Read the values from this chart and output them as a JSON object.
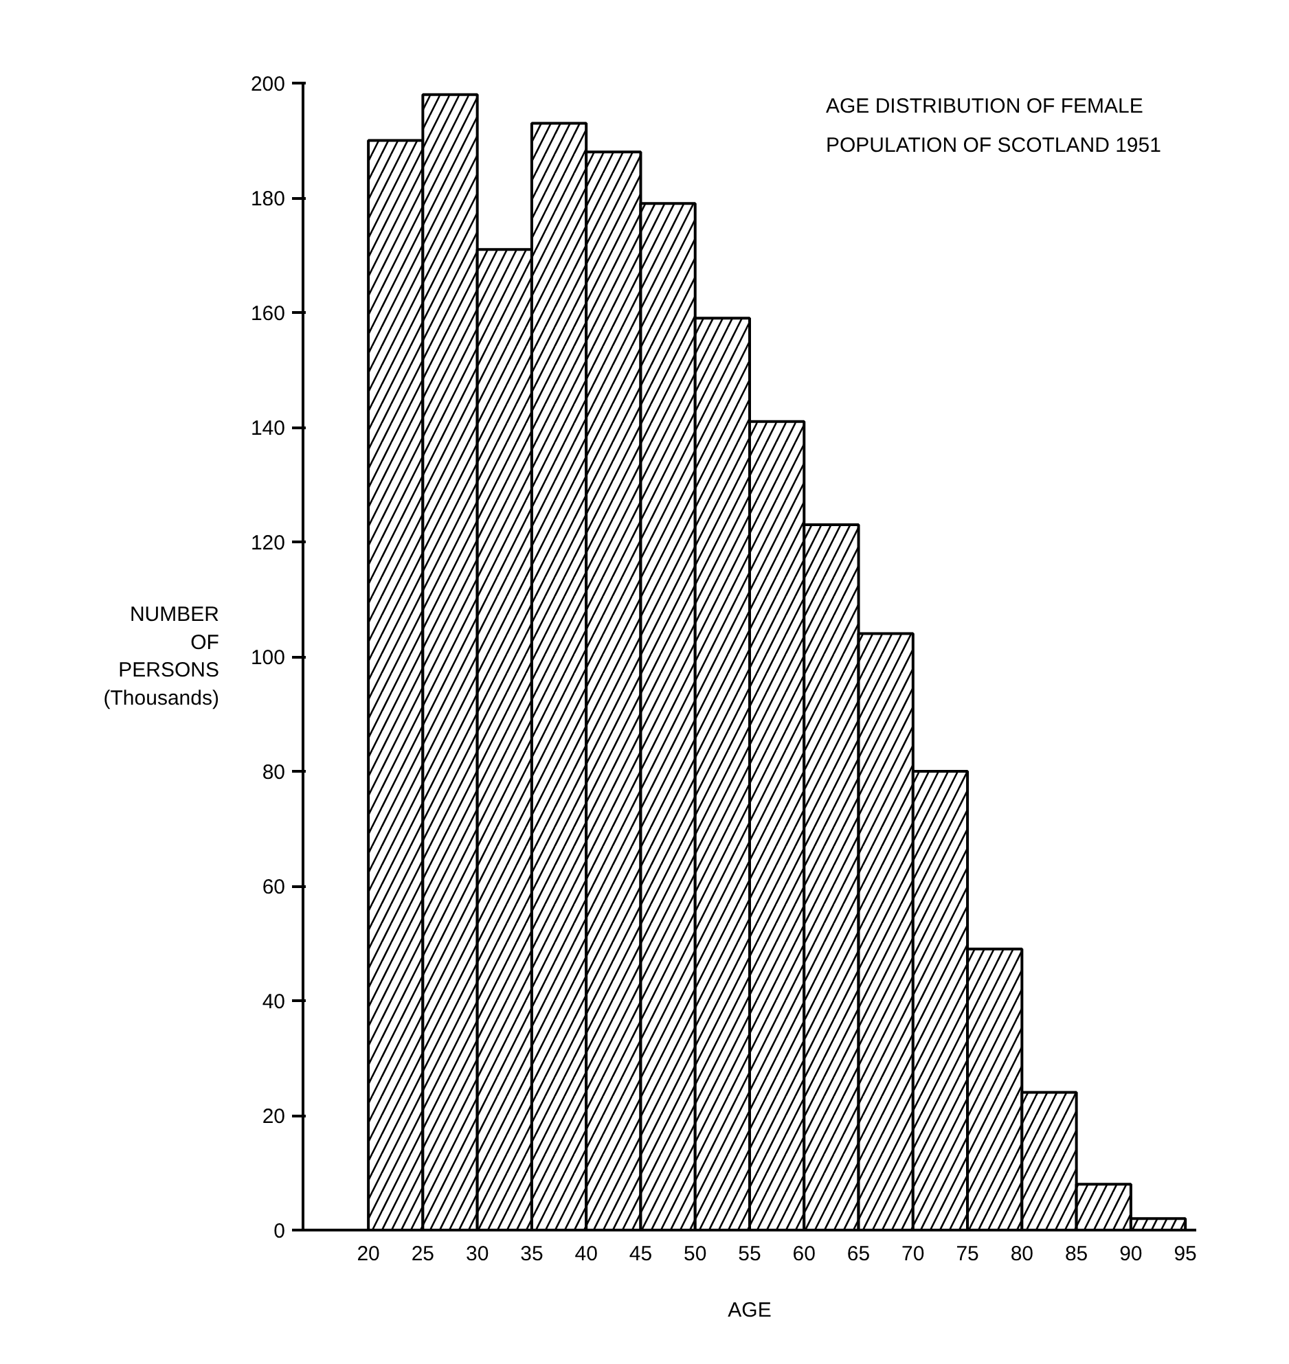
{
  "chart_data": {
    "type": "histogram",
    "title": "AGE DISTRIBUTION OF FEMALE\nPOPULATION OF SCOTLAND 1951",
    "xlabel": "AGE",
    "ylabel": "NUMBER\nOF\nPERSONS\n(Thousands)",
    "bins": [
      20,
      25,
      30,
      35,
      40,
      45,
      50,
      55,
      60,
      65,
      70,
      75,
      80,
      85,
      90,
      95
    ],
    "values": [
      190,
      198,
      171,
      193,
      188,
      179,
      159,
      141,
      123,
      104,
      80,
      49,
      24,
      8,
      2
    ],
    "color": "#ffffff",
    "xlim": [
      14,
      96
    ],
    "ylim": [
      0,
      200
    ],
    "xticks": [
      20,
      25,
      30,
      35,
      40,
      45,
      50,
      55,
      60,
      65,
      70,
      75,
      80,
      85,
      90,
      95
    ],
    "yticks": [
      0,
      20,
      40,
      60,
      80,
      100,
      120,
      140,
      160,
      180,
      200
    ],
    "grid": false
  }
}
